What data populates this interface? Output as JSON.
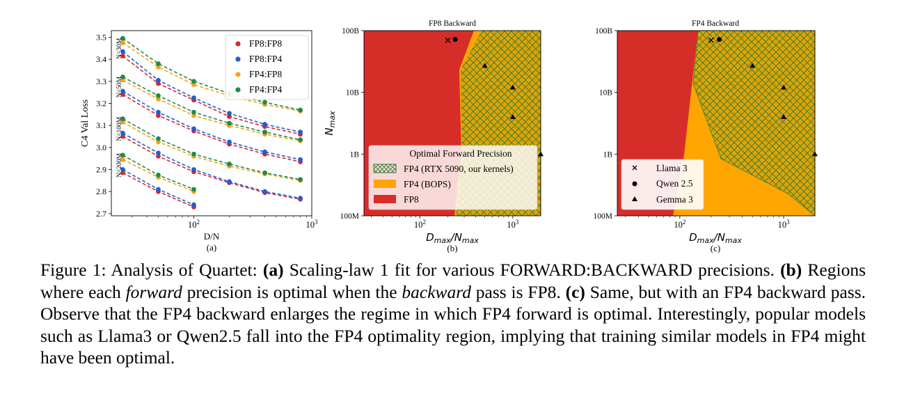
{
  "chart_data": [
    {
      "type": "scatter",
      "panel_label": "(a)",
      "xlabel": "D/N",
      "ylabel": "C4 Val Loss",
      "xscale": "log",
      "xlim": [
        20,
        1000
      ],
      "ylim": [
        2.69,
        3.53
      ],
      "xticks": [
        {
          "v": 100,
          "b": "10",
          "e": "2"
        },
        {
          "v": 1000,
          "b": "10",
          "e": "3"
        }
      ],
      "yticks": [
        2.7,
        2.8,
        2.9,
        3.0,
        3.1,
        3.2,
        3.3,
        3.4,
        3.5
      ],
      "legend_position": "top-right",
      "series": [
        {
          "name": "FP8:FP8",
          "color": "#d62728"
        },
        {
          "name": "FP8:FP4",
          "color": "#1f5fd6"
        },
        {
          "name": "FP4:FP8",
          "color": "#f5a316"
        },
        {
          "name": "FP4:FP4",
          "color": "#1f8a4c"
        }
      ],
      "x": [
        25,
        50,
        100,
        200,
        400,
        800
      ],
      "groups": [
        {
          "label": "N=30M",
          "values": {
            "FP8:FP8": [
              3.415,
              3.29,
              3.215,
              3.14,
              3.095,
              3.06
            ],
            "FP8:FP4": [
              3.435,
              3.305,
              3.225,
              3.155,
              3.105,
              3.07
            ],
            "FP4:FP8": [
              3.475,
              3.365,
              3.285,
              3.235,
              3.195,
              3.165
            ],
            "FP4:FP4": [
              3.495,
              3.38,
              3.3,
              3.245,
              3.205,
              3.17
            ]
          }
        },
        {
          "label": "N=50M",
          "values": {
            "FP8:FP8": [
              3.24,
              3.145,
              3.075,
              3.015,
              2.97,
              2.935
            ],
            "FP8:FP4": [
              3.255,
              3.16,
              3.085,
              3.025,
              2.98,
              2.945
            ],
            "FP4:FP8": [
              3.305,
              3.22,
              3.145,
              3.1,
              3.06,
              3.03
            ],
            "FP4:FP4": [
              3.32,
              3.235,
              3.16,
              3.11,
              3.07,
              3.035
            ]
          }
        },
        {
          "label": "N=100M",
          "values": {
            "FP8:FP8": [
              3.05,
              2.96,
              2.89,
              2.84,
              2.795,
              2.765
            ],
            "FP8:FP4": [
              3.065,
              2.975,
              2.9,
              2.845,
              2.8,
              2.77
            ],
            "FP4:FP8": [
              3.115,
              3.025,
              2.96,
              2.915,
              2.88,
              2.85
            ],
            "FP4:FP4": [
              3.13,
              3.04,
              2.97,
              2.925,
              2.885,
              2.855
            ]
          }
        },
        {
          "label": "N=200M",
          "values": {
            "FP8:FP8": [
              2.885,
              2.8,
              2.73
            ],
            "FP8:FP4": [
              2.9,
              2.81,
              2.74
            ],
            "FP4:FP8": [
              2.945,
              2.865,
              2.8
            ],
            "FP4:FP4": [
              2.965,
              2.875,
              2.81
            ]
          }
        }
      ]
    },
    {
      "type": "area",
      "panel_label": "(b)",
      "title": "FP8 Backward",
      "xlabel": "D_max/N_max",
      "ylabel": "N_max",
      "xscale": "log",
      "yscale": "log",
      "xlim": [
        25,
        2000
      ],
      "ylim": [
        "100M",
        "100B"
      ],
      "xticks": [
        {
          "v": 100,
          "b": "10",
          "e": "2"
        },
        {
          "v": 1000,
          "b": "10",
          "e": "3"
        }
      ],
      "yticks": [
        "100M",
        "1B",
        "10B",
        "100B"
      ],
      "regions": [
        {
          "name": "FP4 (RTX 5090, our kernels)",
          "color": "#1f8a4c",
          "hatched": true
        },
        {
          "name": "FP4 (BOPS)",
          "color": "#ffa500"
        },
        {
          "name": "FP8",
          "color": "#d62d28"
        }
      ],
      "legend_title": "Optimal Forward Precision",
      "legend_position": "lower-left"
    },
    {
      "type": "area",
      "panel_label": "(c)",
      "title": "FP4 Backward",
      "xlabel": "D_max/N_max",
      "xscale": "log",
      "yscale": "log",
      "xlim": [
        25,
        2000
      ],
      "ylim": [
        "100M",
        "100B"
      ],
      "xticks": [
        {
          "v": 100,
          "b": "10",
          "e": "2"
        },
        {
          "v": 1000,
          "b": "10",
          "e": "3"
        }
      ],
      "yticks": [
        "100M",
        "1B",
        "10B",
        "100B"
      ],
      "models": [
        {
          "name": "Llama 3",
          "marker": "x",
          "points": [
            [
              200,
              70
            ]
          ]
        },
        {
          "name": "Qwen 2.5",
          "marker": "circle",
          "points": [
            [
              240,
              72
            ]
          ]
        },
        {
          "name": "Gemma 3",
          "marker": "triangle",
          "points": [
            [
              500,
              27
            ],
            [
              1000,
              12
            ],
            [
              1000,
              4
            ],
            [
              2000,
              1
            ]
          ]
        }
      ],
      "legend_position": "lower-left"
    }
  ],
  "caption": {
    "figure_label": "Figure 1:",
    "intro": " Analysis of Quartet: ",
    "a_label": "(a)",
    "a_text": " Scaling-law 1 fit for various FORWARD:BACKWARD precisions. ",
    "b_label": "(b)",
    "b_text1": " Regions where each ",
    "b_forward": "forward",
    "b_text2": " precision is optimal when the ",
    "b_backward": "backward",
    "b_text3": " pass is FP8. ",
    "c_label": "(c)",
    "c_text": " Same, but with an FP4 backward pass. Observe that the FP4 backward enlarges the regime in which FP4 forward is optimal.  Interestingly, popular models such as Llama3 or Qwen2.5 fall into the FP4 optimality region, implying that training similar models in FP4 might have been optimal."
  }
}
